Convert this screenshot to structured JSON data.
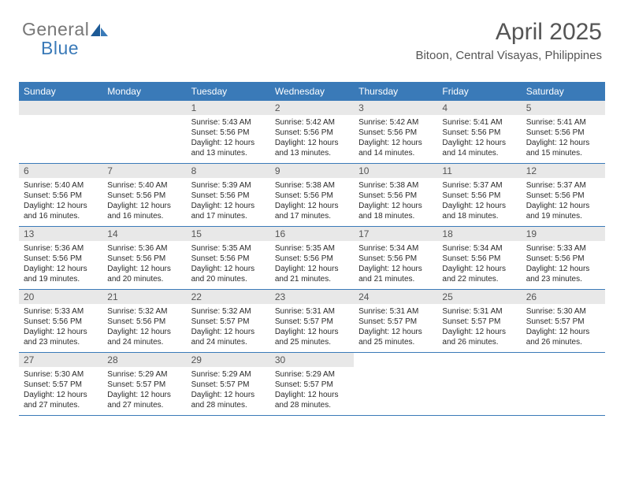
{
  "logo": {
    "line1": "General",
    "line2": "Blue"
  },
  "header": {
    "month": "April 2025",
    "location": "Bitoon, Central Visayas, Philippines"
  },
  "colors": {
    "header_bg": "#3a7ab8",
    "day_num_bg": "#e8e8e8",
    "text_dark": "#333333",
    "text_gray": "#555555",
    "row_border": "#3a7ab8",
    "page_bg": "#ffffff",
    "logo_gray": "#777777",
    "logo_blue": "#3a7ab8"
  },
  "typography": {
    "month_fontsize": 30,
    "location_fontsize": 15,
    "day_header_fontsize": 12,
    "day_num_fontsize": 12,
    "body_fontsize": 10
  },
  "dayNames": [
    "Sunday",
    "Monday",
    "Tuesday",
    "Wednesday",
    "Thursday",
    "Friday",
    "Saturday"
  ],
  "labels": {
    "sunrise": "Sunrise:",
    "sunset": "Sunset:",
    "daylight": "Daylight:"
  },
  "calendar": {
    "first_weekday_index": 2,
    "days_in_month": 30,
    "days": [
      {
        "n": 1,
        "sunrise": "5:43 AM",
        "sunset": "5:56 PM",
        "daylight": "12 hours and 13 minutes."
      },
      {
        "n": 2,
        "sunrise": "5:42 AM",
        "sunset": "5:56 PM",
        "daylight": "12 hours and 13 minutes."
      },
      {
        "n": 3,
        "sunrise": "5:42 AM",
        "sunset": "5:56 PM",
        "daylight": "12 hours and 14 minutes."
      },
      {
        "n": 4,
        "sunrise": "5:41 AM",
        "sunset": "5:56 PM",
        "daylight": "12 hours and 14 minutes."
      },
      {
        "n": 5,
        "sunrise": "5:41 AM",
        "sunset": "5:56 PM",
        "daylight": "12 hours and 15 minutes."
      },
      {
        "n": 6,
        "sunrise": "5:40 AM",
        "sunset": "5:56 PM",
        "daylight": "12 hours and 16 minutes."
      },
      {
        "n": 7,
        "sunrise": "5:40 AM",
        "sunset": "5:56 PM",
        "daylight": "12 hours and 16 minutes."
      },
      {
        "n": 8,
        "sunrise": "5:39 AM",
        "sunset": "5:56 PM",
        "daylight": "12 hours and 17 minutes."
      },
      {
        "n": 9,
        "sunrise": "5:38 AM",
        "sunset": "5:56 PM",
        "daylight": "12 hours and 17 minutes."
      },
      {
        "n": 10,
        "sunrise": "5:38 AM",
        "sunset": "5:56 PM",
        "daylight": "12 hours and 18 minutes."
      },
      {
        "n": 11,
        "sunrise": "5:37 AM",
        "sunset": "5:56 PM",
        "daylight": "12 hours and 18 minutes."
      },
      {
        "n": 12,
        "sunrise": "5:37 AM",
        "sunset": "5:56 PM",
        "daylight": "12 hours and 19 minutes."
      },
      {
        "n": 13,
        "sunrise": "5:36 AM",
        "sunset": "5:56 PM",
        "daylight": "12 hours and 19 minutes."
      },
      {
        "n": 14,
        "sunrise": "5:36 AM",
        "sunset": "5:56 PM",
        "daylight": "12 hours and 20 minutes."
      },
      {
        "n": 15,
        "sunrise": "5:35 AM",
        "sunset": "5:56 PM",
        "daylight": "12 hours and 20 minutes."
      },
      {
        "n": 16,
        "sunrise": "5:35 AM",
        "sunset": "5:56 PM",
        "daylight": "12 hours and 21 minutes."
      },
      {
        "n": 17,
        "sunrise": "5:34 AM",
        "sunset": "5:56 PM",
        "daylight": "12 hours and 21 minutes."
      },
      {
        "n": 18,
        "sunrise": "5:34 AM",
        "sunset": "5:56 PM",
        "daylight": "12 hours and 22 minutes."
      },
      {
        "n": 19,
        "sunrise": "5:33 AM",
        "sunset": "5:56 PM",
        "daylight": "12 hours and 23 minutes."
      },
      {
        "n": 20,
        "sunrise": "5:33 AM",
        "sunset": "5:56 PM",
        "daylight": "12 hours and 23 minutes."
      },
      {
        "n": 21,
        "sunrise": "5:32 AM",
        "sunset": "5:56 PM",
        "daylight": "12 hours and 24 minutes."
      },
      {
        "n": 22,
        "sunrise": "5:32 AM",
        "sunset": "5:57 PM",
        "daylight": "12 hours and 24 minutes."
      },
      {
        "n": 23,
        "sunrise": "5:31 AM",
        "sunset": "5:57 PM",
        "daylight": "12 hours and 25 minutes."
      },
      {
        "n": 24,
        "sunrise": "5:31 AM",
        "sunset": "5:57 PM",
        "daylight": "12 hours and 25 minutes."
      },
      {
        "n": 25,
        "sunrise": "5:31 AM",
        "sunset": "5:57 PM",
        "daylight": "12 hours and 26 minutes."
      },
      {
        "n": 26,
        "sunrise": "5:30 AM",
        "sunset": "5:57 PM",
        "daylight": "12 hours and 26 minutes."
      },
      {
        "n": 27,
        "sunrise": "5:30 AM",
        "sunset": "5:57 PM",
        "daylight": "12 hours and 27 minutes."
      },
      {
        "n": 28,
        "sunrise": "5:29 AM",
        "sunset": "5:57 PM",
        "daylight": "12 hours and 27 minutes."
      },
      {
        "n": 29,
        "sunrise": "5:29 AM",
        "sunset": "5:57 PM",
        "daylight": "12 hours and 28 minutes."
      },
      {
        "n": 30,
        "sunrise": "5:29 AM",
        "sunset": "5:57 PM",
        "daylight": "12 hours and 28 minutes."
      }
    ]
  }
}
